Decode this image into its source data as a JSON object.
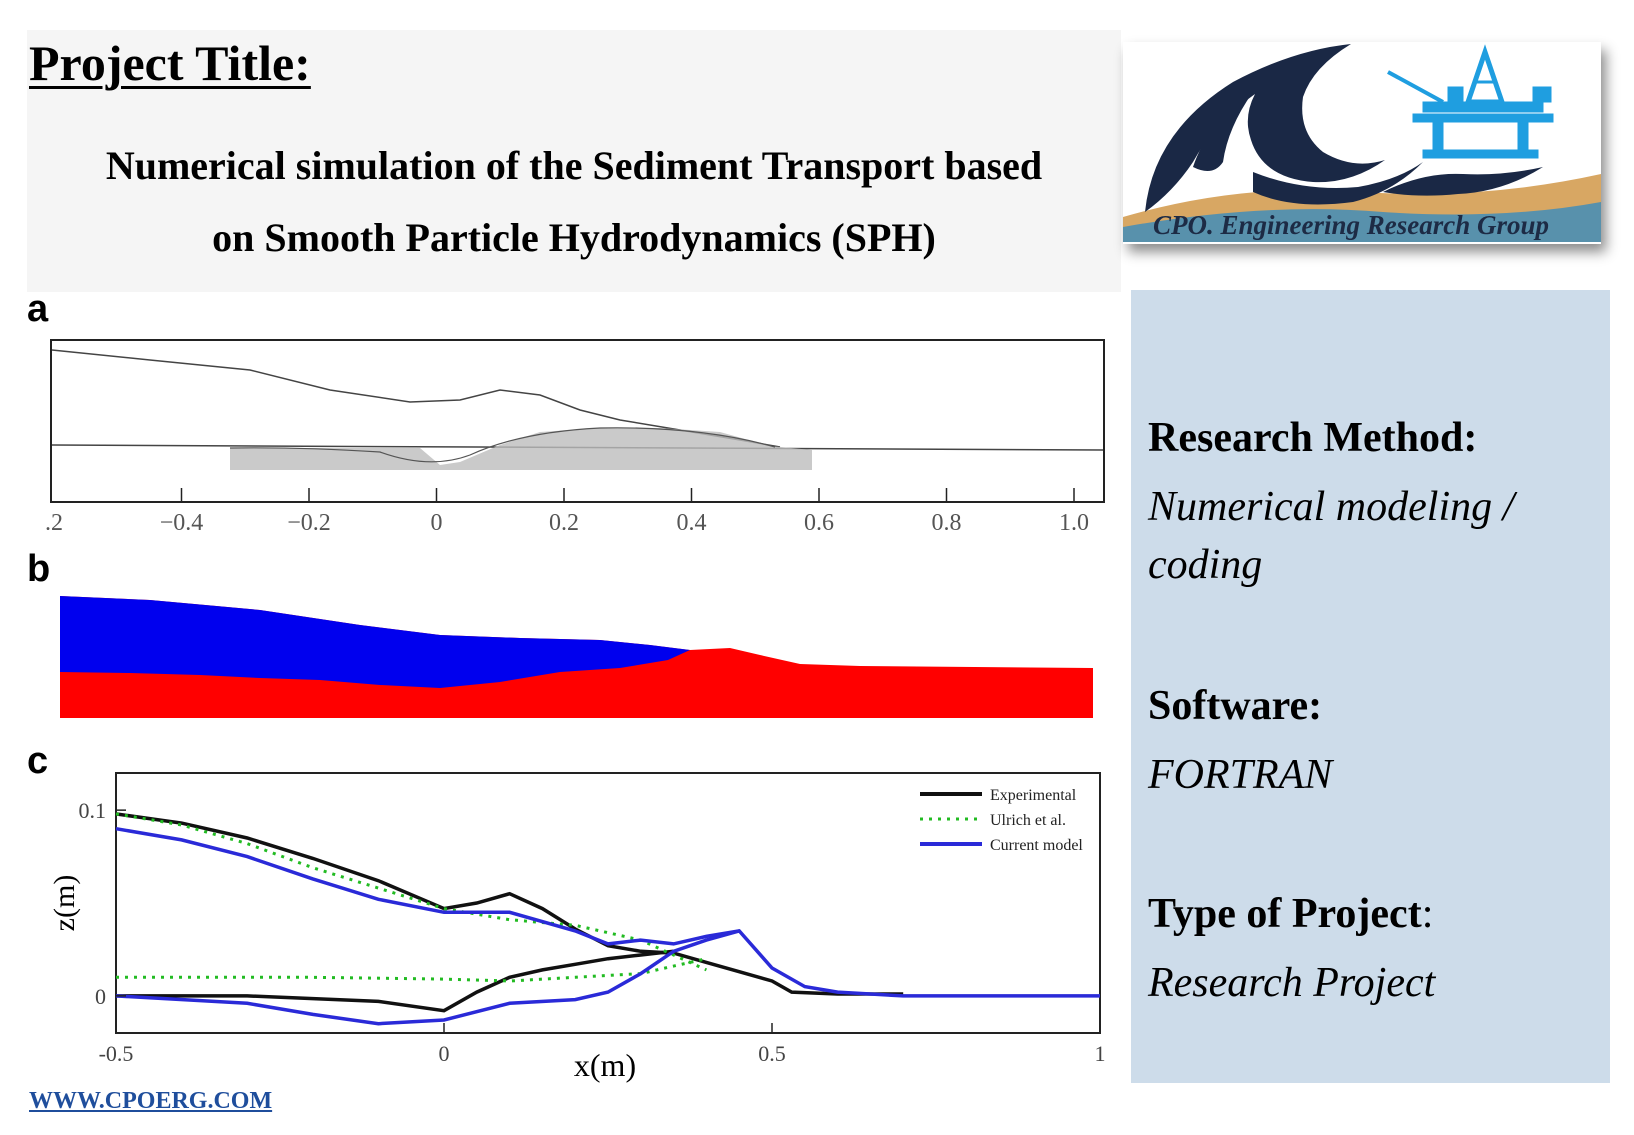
{
  "header": {
    "label": "Project Title:",
    "title_line1": "Numerical simulation of the Sediment Transport based",
    "title_line2": "on Smooth Particle Hydrodynamics (SPH)"
  },
  "logo": {
    "text": "CPO. Engineering Research Group",
    "icon": "wave-and-offshore-platform-logo"
  },
  "side_panel": {
    "method_heading": "Research Method:",
    "method_value": "Numerical modeling / coding",
    "software_heading": "Software:",
    "software_value": "FORTRAN",
    "type_heading": "Type of Project",
    "type_colon": ":",
    "type_value": "Research Project"
  },
  "figure": {
    "panel_a_label": "a",
    "panel_b_label": "b",
    "panel_c_label": "c",
    "panel_a_xticks": [
      ".2",
      "−0.4",
      "−0.2",
      "0",
      "0.2",
      "0.4",
      "0.6",
      "0.8",
      "1.0"
    ],
    "panel_b_colors": {
      "water": "#0000ee",
      "sediment": "#ff0000"
    }
  },
  "chart_data": {
    "type": "line",
    "xlabel": "x(m)",
    "ylabel": "z(m)",
    "xlim": [
      -0.5,
      1
    ],
    "ylim": [
      -0.02,
      0.12
    ],
    "xticks": [
      "-0.5",
      "0",
      "0.5",
      "1"
    ],
    "yticks": [
      "0",
      "0.1"
    ],
    "legend_position": "top-right",
    "series": [
      {
        "name": "Experimental",
        "color": "#111111",
        "style": "solid",
        "upper": {
          "x": [
            -0.5,
            -0.4,
            -0.3,
            -0.2,
            -0.1,
            0,
            0.05,
            0.1,
            0.15,
            0.2,
            0.25,
            0.3,
            0.35,
            0.4,
            0.45,
            0.5,
            0.53,
            0.6,
            0.7
          ],
          "y": [
            0.098,
            0.093,
            0.085,
            0.074,
            0.062,
            0.047,
            0.05,
            0.055,
            0.047,
            0.036,
            0.027,
            0.024,
            0.023,
            0.018,
            0.013,
            0.008,
            0.002,
            0.001,
            0.001
          ]
        },
        "lower": {
          "x": [
            -0.5,
            -0.3,
            -0.1,
            0,
            0.05,
            0.1,
            0.15,
            0.2,
            0.25,
            0.3,
            0.35
          ],
          "y": [
            0,
            0,
            -0.003,
            -0.008,
            0.002,
            0.01,
            0.014,
            0.017,
            0.02,
            0.022,
            0.024
          ]
        }
      },
      {
        "name": "Ulrich et al.",
        "color": "#22bb22",
        "style": "dotted",
        "upper": {
          "x": [
            -0.5,
            -0.4,
            -0.3,
            -0.2,
            -0.1,
            0,
            0.1,
            0.2,
            0.3,
            0.35,
            0.4
          ],
          "y": [
            0.098,
            0.092,
            0.082,
            0.069,
            0.058,
            0.047,
            0.041,
            0.038,
            0.03,
            0.022,
            0.014
          ]
        },
        "lower": {
          "x": [
            -0.5,
            -0.2,
            0,
            0.1,
            0.2,
            0.3,
            0.35,
            0.4
          ],
          "y": [
            0.01,
            0.01,
            0.009,
            0.008,
            0.01,
            0.012,
            0.016,
            0.02
          ]
        }
      },
      {
        "name": "Current model",
        "color": "#2a2ad8",
        "style": "solid",
        "upper": {
          "x": [
            -0.5,
            -0.4,
            -0.3,
            -0.2,
            -0.1,
            0,
            0.1,
            0.2,
            0.25,
            0.3,
            0.35,
            0.4,
            0.45,
            0.5,
            0.55,
            0.6,
            0.7,
            1.0
          ],
          "y": [
            0.09,
            0.084,
            0.075,
            0.063,
            0.052,
            0.045,
            0.045,
            0.035,
            0.028,
            0.03,
            0.028,
            0.032,
            0.035,
            0.015,
            0.005,
            0.002,
            0,
            0
          ]
        },
        "lower": {
          "x": [
            -0.5,
            -0.3,
            -0.2,
            -0.1,
            0,
            0.1,
            0.2,
            0.25,
            0.3,
            0.35,
            0.4,
            0.45
          ],
          "y": [
            0,
            -0.004,
            -0.01,
            -0.015,
            -0.013,
            -0.004,
            -0.002,
            0.002,
            0.012,
            0.024,
            0.03,
            0.035
          ]
        }
      }
    ]
  },
  "footer": {
    "website": "WWW.CPOERG.COM"
  }
}
